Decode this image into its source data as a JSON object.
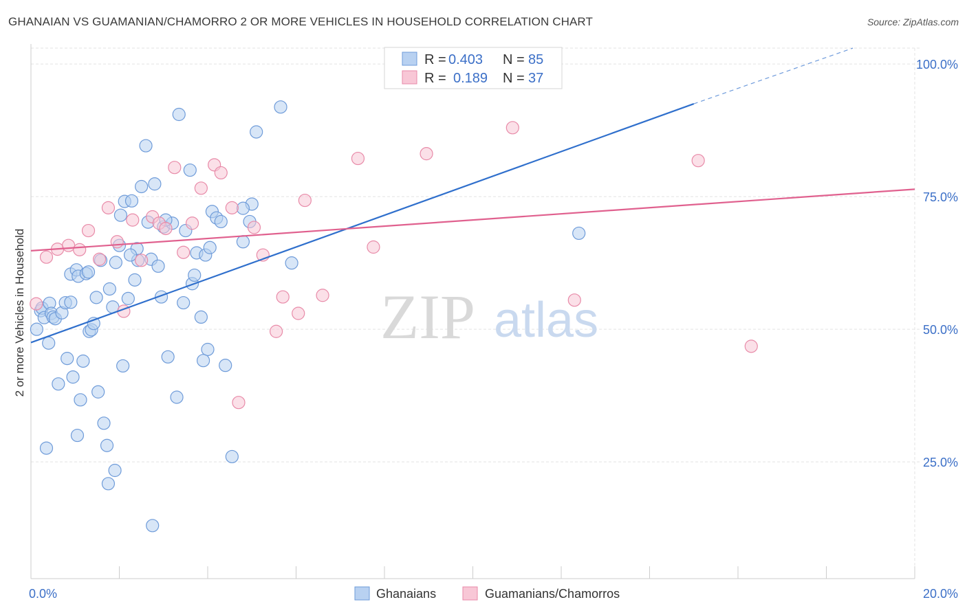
{
  "header": {
    "title": "GHANAIAN VS GUAMANIAN/CHAMORRO 2 OR MORE VEHICLES IN HOUSEHOLD CORRELATION CHART",
    "source": "Source: ZipAtlas.com"
  },
  "watermark": {
    "zip": "ZIP",
    "atlas": "atlas"
  },
  "legend_box": {
    "rows": [
      {
        "r_label": "R =",
        "r_value": "0.403",
        "n_label": "N =",
        "n_value": "85"
      },
      {
        "r_label": "R =",
        "r_value": "0.189",
        "n_label": "N =",
        "n_value": "37"
      }
    ]
  },
  "bottom_legend": [
    "Ghanaians",
    "Guamanians/Chamorros"
  ],
  "colors": {
    "blue_fill": "#b8d1f1",
    "blue_stroke": "#6e9bd9",
    "blue_line": "#2f6fcc",
    "pink_fill": "#f8c7d6",
    "pink_stroke": "#e88aa8",
    "pink_line": "#e0608e",
    "grid": "#e3e3e3",
    "tick_text": "#3b6fc7"
  },
  "chart_data": {
    "type": "scatter",
    "title": "GHANAIAN VS GUAMANIAN/CHAMORRO 2 OR MORE VEHICLES IN HOUSEHOLD CORRELATION CHART",
    "xlabel": "",
    "ylabel": "2 or more Vehicles in Household",
    "xlim": [
      0,
      20
    ],
    "ylim": [
      3,
      103
    ],
    "x_tick_labels": [
      {
        "value": 0,
        "label": "0.0%"
      },
      {
        "value": 20,
        "label": "20.0%"
      }
    ],
    "y_tick_labels": [
      {
        "value": 25,
        "label": "25.0%"
      },
      {
        "value": 50,
        "label": "50.0%"
      },
      {
        "value": 75,
        "label": "75.0%"
      },
      {
        "value": 100,
        "label": "100.0%"
      }
    ],
    "grid": true,
    "legend_position": "top-center",
    "series": [
      {
        "name": "Ghanaians",
        "color": "#6e9bd9",
        "r": "0.403",
        "n": "85",
        "trend": {
          "x": [
            0,
            15
          ],
          "y": [
            47.5,
            92.5
          ],
          "dashed_extension_to": [
            18.6,
            103
          ]
        },
        "points": [
          [
            0.13,
            50.0
          ],
          [
            0.22,
            53.5
          ],
          [
            0.25,
            54.0
          ],
          [
            0.3,
            52.2
          ],
          [
            0.35,
            27.6
          ],
          [
            0.4,
            47.4
          ],
          [
            0.42,
            54.9
          ],
          [
            0.46,
            53.0
          ],
          [
            0.5,
            52.3
          ],
          [
            0.55,
            52.0
          ],
          [
            0.62,
            39.7
          ],
          [
            0.7,
            53.1
          ],
          [
            0.78,
            55.0
          ],
          [
            0.82,
            44.5
          ],
          [
            0.9,
            60.4
          ],
          [
            0.95,
            41.0
          ],
          [
            1.03,
            61.2
          ],
          [
            1.07,
            60.0
          ],
          [
            1.12,
            36.7
          ],
          [
            1.18,
            44.0
          ],
          [
            1.25,
            60.5
          ],
          [
            1.32,
            49.6
          ],
          [
            1.37,
            49.9
          ],
          [
            1.42,
            51.1
          ],
          [
            1.48,
            56.0
          ],
          [
            1.52,
            38.2
          ],
          [
            1.58,
            63.0
          ],
          [
            1.65,
            32.3
          ],
          [
            1.72,
            28.1
          ],
          [
            1.78,
            57.6
          ],
          [
            1.85,
            54.2
          ],
          [
            1.92,
            62.6
          ],
          [
            2.0,
            65.8
          ],
          [
            2.03,
            71.5
          ],
          [
            2.08,
            43.1
          ],
          [
            2.12,
            74.1
          ],
          [
            2.2,
            55.8
          ],
          [
            2.28,
            74.2
          ],
          [
            2.35,
            59.3
          ],
          [
            2.42,
            63.0
          ],
          [
            2.5,
            76.9
          ],
          [
            2.6,
            84.6
          ],
          [
            2.65,
            70.2
          ],
          [
            2.72,
            63.2
          ],
          [
            2.8,
            77.4
          ],
          [
            2.88,
            61.9
          ],
          [
            2.95,
            56.1
          ],
          [
            3.0,
            69.3
          ],
          [
            3.1,
            44.8
          ],
          [
            3.2,
            70.0
          ],
          [
            3.3,
            37.2
          ],
          [
            3.35,
            90.5
          ],
          [
            3.45,
            55.0
          ],
          [
            3.5,
            68.6
          ],
          [
            3.6,
            80.0
          ],
          [
            3.65,
            58.6
          ],
          [
            3.7,
            60.2
          ],
          [
            3.75,
            64.4
          ],
          [
            3.85,
            52.3
          ],
          [
            3.95,
            64.0
          ],
          [
            4.0,
            46.2
          ],
          [
            4.05,
            65.4
          ],
          [
            4.1,
            72.2
          ],
          [
            4.2,
            71.0
          ],
          [
            4.3,
            70.3
          ],
          [
            4.4,
            43.2
          ],
          [
            4.55,
            26.0
          ],
          [
            4.8,
            66.5
          ],
          [
            4.95,
            70.3
          ],
          [
            5.0,
            73.6
          ],
          [
            5.1,
            87.2
          ],
          [
            5.65,
            91.9
          ],
          [
            5.9,
            62.5
          ],
          [
            12.4,
            68.1
          ],
          [
            1.9,
            23.4
          ],
          [
            1.75,
            20.9
          ],
          [
            2.75,
            13.0
          ],
          [
            0.9,
            55.1
          ],
          [
            1.3,
            60.8
          ],
          [
            2.4,
            65.2
          ],
          [
            3.05,
            70.6
          ],
          [
            3.9,
            44.1
          ],
          [
            4.8,
            72.8
          ],
          [
            1.05,
            30.0
          ],
          [
            2.25,
            64.0
          ]
        ]
      },
      {
        "name": "Guamanians/Chamorros",
        "color": "#e88aa8",
        "r": "0.189",
        "n": "37",
        "trend": {
          "x": [
            0,
            20
          ],
          "y": [
            64.8,
            76.4
          ]
        },
        "points": [
          [
            0.12,
            54.8
          ],
          [
            0.35,
            63.6
          ],
          [
            0.6,
            65.1
          ],
          [
            0.85,
            65.8
          ],
          [
            1.1,
            65.0
          ],
          [
            1.3,
            68.6
          ],
          [
            1.55,
            63.2
          ],
          [
            1.75,
            72.9
          ],
          [
            1.95,
            66.5
          ],
          [
            2.1,
            53.4
          ],
          [
            2.3,
            70.6
          ],
          [
            2.5,
            63.0
          ],
          [
            2.75,
            71.2
          ],
          [
            2.9,
            70.0
          ],
          [
            3.05,
            69.0
          ],
          [
            3.25,
            80.5
          ],
          [
            3.45,
            64.5
          ],
          [
            3.65,
            70.0
          ],
          [
            3.85,
            76.6
          ],
          [
            4.15,
            81.0
          ],
          [
            4.3,
            79.5
          ],
          [
            4.55,
            72.9
          ],
          [
            4.7,
            36.2
          ],
          [
            5.05,
            69.2
          ],
          [
            5.25,
            64.0
          ],
          [
            5.55,
            49.6
          ],
          [
            5.7,
            56.1
          ],
          [
            6.05,
            53.0
          ],
          [
            6.2,
            74.3
          ],
          [
            6.6,
            56.4
          ],
          [
            7.4,
            82.2
          ],
          [
            7.75,
            65.5
          ],
          [
            8.95,
            83.1
          ],
          [
            10.9,
            88.0
          ],
          [
            12.3,
            55.5
          ],
          [
            15.1,
            81.8
          ],
          [
            16.3,
            46.8
          ]
        ]
      }
    ]
  }
}
